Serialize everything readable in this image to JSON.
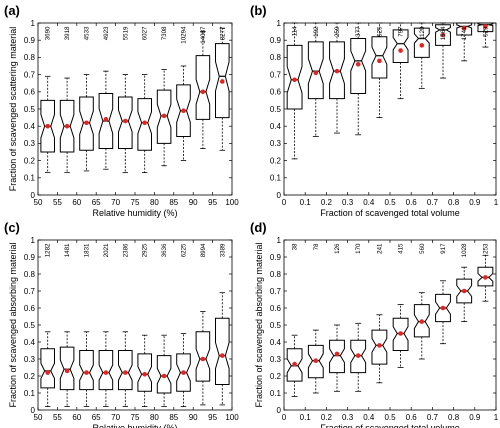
{
  "chart_data": [
    {
      "panel_label": "(a)",
      "type": "box",
      "xlabel": "Relative humidity (%)",
      "ylabel": "Fraction of scavenged scattering material",
      "xlim": [
        50,
        100
      ],
      "ylim": [
        0,
        1
      ],
      "xticks": [
        50,
        55,
        60,
        65,
        70,
        75,
        80,
        85,
        90,
        95,
        100
      ],
      "yticks": [
        0,
        0.1,
        0.2,
        0.3,
        0.4,
        0.5,
        0.6,
        0.7,
        0.8,
        0.9,
        1
      ],
      "counts": [
        "3690",
        "3918",
        "4533",
        "4923",
        "5519",
        "6027",
        "7308",
        "10294",
        "14087",
        "8277"
      ],
      "boxes": [
        {
          "x": 52.5,
          "whislo": 0.13,
          "q1": 0.25,
          "med": 0.4,
          "q3": 0.55,
          "whishi": 0.69,
          "mean": 0.4
        },
        {
          "x": 57.5,
          "whislo": 0.13,
          "q1": 0.25,
          "med": 0.4,
          "q3": 0.55,
          "whishi": 0.68,
          "mean": 0.4
        },
        {
          "x": 62.5,
          "whislo": 0.14,
          "q1": 0.26,
          "med": 0.42,
          "q3": 0.57,
          "whishi": 0.7,
          "mean": 0.42
        },
        {
          "x": 67.5,
          "whislo": 0.15,
          "q1": 0.27,
          "med": 0.43,
          "q3": 0.59,
          "whishi": 0.72,
          "mean": 0.44
        },
        {
          "x": 72.5,
          "whislo": 0.13,
          "q1": 0.27,
          "med": 0.43,
          "q3": 0.57,
          "whishi": 0.7,
          "mean": 0.43
        },
        {
          "x": 77.5,
          "whislo": 0.13,
          "q1": 0.26,
          "med": 0.42,
          "q3": 0.56,
          "whishi": 0.7,
          "mean": 0.42
        },
        {
          "x": 82.5,
          "whislo": 0.17,
          "q1": 0.3,
          "med": 0.46,
          "q3": 0.61,
          "whishi": 0.73,
          "mean": 0.46
        },
        {
          "x": 87.5,
          "whislo": 0.2,
          "q1": 0.34,
          "med": 0.49,
          "q3": 0.64,
          "whishi": 0.75,
          "mean": 0.49
        },
        {
          "x": 92.5,
          "whislo": 0.27,
          "q1": 0.44,
          "med": 0.6,
          "q3": 0.81,
          "whishi": 0.95,
          "mean": 0.6
        },
        {
          "x": 97.5,
          "whislo": 0.26,
          "q1": 0.45,
          "med": 0.69,
          "q3": 0.88,
          "whishi": 0.97,
          "mean": 0.66
        }
      ]
    },
    {
      "panel_label": "(b)",
      "type": "box",
      "xlabel": "Fraction of scavenged total volume",
      "ylabel": "",
      "xlim": [
        0,
        1
      ],
      "ylim": [
        0,
        1
      ],
      "xticks": [
        0,
        0.1,
        0.2,
        0.3,
        0.4,
        0.5,
        0.6,
        0.7,
        0.8,
        0.9,
        1
      ],
      "yticks": [
        0,
        0.1,
        0.2,
        0.3,
        0.4,
        0.5,
        0.6,
        0.7,
        0.8,
        0.9,
        1
      ],
      "counts": [
        "114",
        "192",
        "259",
        "377",
        "525",
        "797",
        "1120",
        "1564",
        "1741",
        "529"
      ],
      "boxes": [
        {
          "x": 0.05,
          "whislo": 0.21,
          "q1": 0.5,
          "med": 0.67,
          "q3": 0.87,
          "whishi": 1.0,
          "mean": 0.67
        },
        {
          "x": 0.15,
          "whislo": 0.34,
          "q1": 0.56,
          "med": 0.72,
          "q3": 0.89,
          "whishi": 1.0,
          "mean": 0.71
        },
        {
          "x": 0.25,
          "whislo": 0.36,
          "q1": 0.56,
          "med": 0.72,
          "q3": 0.89,
          "whishi": 1.0,
          "mean": 0.72
        },
        {
          "x": 0.35,
          "whislo": 0.35,
          "q1": 0.59,
          "med": 0.78,
          "q3": 0.91,
          "whishi": 1.0,
          "mean": 0.76
        },
        {
          "x": 0.45,
          "whislo": 0.45,
          "q1": 0.68,
          "med": 0.81,
          "q3": 0.92,
          "whishi": 1.0,
          "mean": 0.78
        },
        {
          "x": 0.55,
          "whislo": 0.56,
          "q1": 0.77,
          "med": 0.88,
          "q3": 0.96,
          "whishi": 1.0,
          "mean": 0.84
        },
        {
          "x": 0.65,
          "whislo": 0.62,
          "q1": 0.8,
          "med": 0.91,
          "q3": 0.97,
          "whishi": 1.0,
          "mean": 0.87
        },
        {
          "x": 0.75,
          "whislo": 0.68,
          "q1": 0.87,
          "med": 0.96,
          "q3": 0.99,
          "whishi": 1.0,
          "mean": 0.93
        },
        {
          "x": 0.85,
          "whislo": 0.78,
          "q1": 0.93,
          "med": 0.98,
          "q3": 1.0,
          "whishi": 1.0,
          "mean": 0.97
        },
        {
          "x": 0.95,
          "whislo": 0.86,
          "q1": 0.95,
          "med": 0.99,
          "q3": 1.0,
          "whishi": 1.0,
          "mean": 0.98
        }
      ]
    },
    {
      "panel_label": "(c)",
      "type": "box",
      "xlabel": "Relative humidity (%)",
      "ylabel": "Fraction of scavenged absorbing material",
      "xlim": [
        50,
        100
      ],
      "ylim": [
        0,
        1
      ],
      "xticks": [
        50,
        55,
        60,
        65,
        70,
        75,
        80,
        85,
        90,
        95,
        100
      ],
      "yticks": [
        0,
        0.1,
        0.2,
        0.3,
        0.4,
        0.5,
        0.6,
        0.7,
        0.8,
        0.9,
        1
      ],
      "counts": [
        "1282",
        "1481",
        "1831",
        "2021",
        "2386",
        "2925",
        "3636",
        "6225",
        "8994",
        "3389"
      ],
      "boxes": [
        {
          "x": 52.5,
          "whislo": 0.02,
          "q1": 0.13,
          "med": 0.23,
          "q3": 0.36,
          "whishi": 0.46,
          "mean": 0.22
        },
        {
          "x": 57.5,
          "whislo": 0.02,
          "q1": 0.12,
          "med": 0.24,
          "q3": 0.37,
          "whishi": 0.46,
          "mean": 0.23
        },
        {
          "x": 62.5,
          "whislo": 0.02,
          "q1": 0.12,
          "med": 0.22,
          "q3": 0.35,
          "whishi": 0.46,
          "mean": 0.22
        },
        {
          "x": 67.5,
          "whislo": 0.02,
          "q1": 0.12,
          "med": 0.22,
          "q3": 0.35,
          "whishi": 0.46,
          "mean": 0.22
        },
        {
          "x": 72.5,
          "whislo": 0.02,
          "q1": 0.12,
          "med": 0.22,
          "q3": 0.35,
          "whishi": 0.46,
          "mean": 0.22
        },
        {
          "x": 77.5,
          "whislo": 0.02,
          "q1": 0.11,
          "med": 0.21,
          "q3": 0.33,
          "whishi": 0.44,
          "mean": 0.21
        },
        {
          "x": 82.5,
          "whislo": 0.02,
          "q1": 0.1,
          "med": 0.2,
          "q3": 0.32,
          "whishi": 0.44,
          "mean": 0.2
        },
        {
          "x": 87.5,
          "whislo": 0.02,
          "q1": 0.11,
          "med": 0.22,
          "q3": 0.33,
          "whishi": 0.45,
          "mean": 0.22
        },
        {
          "x": 92.5,
          "whislo": 0.03,
          "q1": 0.17,
          "med": 0.3,
          "q3": 0.46,
          "whishi": 0.58,
          "mean": 0.3
        },
        {
          "x": 97.5,
          "whislo": 0.03,
          "q1": 0.15,
          "med": 0.32,
          "q3": 0.54,
          "whishi": 0.69,
          "mean": 0.32
        }
      ]
    },
    {
      "panel_label": "(d)",
      "type": "box",
      "xlabel": "Fraction of scavenged total volume",
      "ylabel": "Fraction of scavenged absorbing material",
      "xlim": [
        0,
        1
      ],
      "ylim": [
        0,
        1
      ],
      "xticks": [
        0,
        0.1,
        0.2,
        0.3,
        0.4,
        0.5,
        0.6,
        0.7,
        0.8,
        0.9,
        1
      ],
      "yticks": [
        0,
        0.1,
        0.2,
        0.3,
        0.4,
        0.5,
        0.6,
        0.7,
        0.8,
        0.9,
        1
      ],
      "counts": [
        "38",
        "78",
        "126",
        "170",
        "241",
        "415",
        "560",
        "917",
        "1028",
        "253"
      ],
      "boxes": [
        {
          "x": 0.05,
          "whislo": 0.08,
          "q1": 0.17,
          "med": 0.26,
          "q3": 0.36,
          "whishi": 0.44,
          "mean": 0.27
        },
        {
          "x": 0.15,
          "whislo": 0.1,
          "q1": 0.19,
          "med": 0.29,
          "q3": 0.38,
          "whishi": 0.47,
          "mean": 0.29
        },
        {
          "x": 0.25,
          "whislo": 0.11,
          "q1": 0.22,
          "med": 0.32,
          "q3": 0.41,
          "whishi": 0.5,
          "mean": 0.33
        },
        {
          "x": 0.35,
          "whislo": 0.11,
          "q1": 0.22,
          "med": 0.32,
          "q3": 0.41,
          "whishi": 0.51,
          "mean": 0.32
        },
        {
          "x": 0.45,
          "whislo": 0.16,
          "q1": 0.27,
          "med": 0.38,
          "q3": 0.47,
          "whishi": 0.56,
          "mean": 0.38
        },
        {
          "x": 0.55,
          "whislo": 0.25,
          "q1": 0.35,
          "med": 0.45,
          "q3": 0.54,
          "whishi": 0.62,
          "mean": 0.45
        },
        {
          "x": 0.65,
          "whislo": 0.3,
          "q1": 0.43,
          "med": 0.52,
          "q3": 0.62,
          "whishi": 0.69,
          "mean": 0.52
        },
        {
          "x": 0.75,
          "whislo": 0.39,
          "q1": 0.52,
          "med": 0.6,
          "q3": 0.68,
          "whishi": 0.76,
          "mean": 0.6
        },
        {
          "x": 0.85,
          "whislo": 0.52,
          "q1": 0.63,
          "med": 0.7,
          "q3": 0.77,
          "whishi": 0.84,
          "mean": 0.7
        },
        {
          "x": 0.95,
          "whislo": 0.64,
          "q1": 0.73,
          "med": 0.78,
          "q3": 0.84,
          "whishi": 0.91,
          "mean": 0.78
        }
      ]
    }
  ],
  "colors": {
    "box": "#000000",
    "mean_marker": "#e8221c",
    "median_marker": "#222222"
  }
}
